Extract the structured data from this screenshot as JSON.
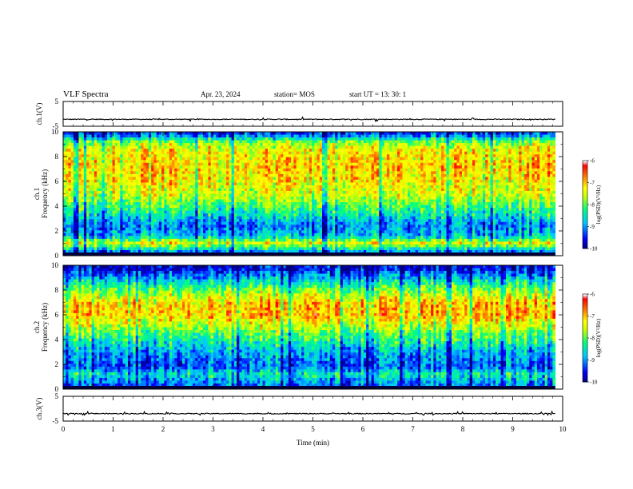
{
  "header": {
    "title": "VLF Spectra",
    "date": "Apr. 23, 2024",
    "station": "station= MOS",
    "start_ut": "start  UT  =   13: 30: 1"
  },
  "chart_data": [
    {
      "type": "line",
      "panel": "ch1-voltage",
      "ylabel": "ch.1(V)",
      "ylim": [
        -5,
        5
      ],
      "yticks": [
        "5",
        "-5"
      ],
      "x_range_min": [
        0,
        10
      ],
      "data_end_min": 9.85,
      "baseline_V": -2.2
    },
    {
      "type": "heatmap",
      "panel": "ch1-spectrogram",
      "ylabel_line1": "ch.1",
      "ylabel_line2": "Frequency (kHz)",
      "ylim": [
        0,
        10
      ],
      "yticks": [
        "0",
        "2",
        "4",
        "6",
        "8",
        "10"
      ],
      "x_range_min": [
        0,
        10
      ],
      "data_end_min": 9.85,
      "colorbar": {
        "label": "log(PSD)(V²/Hz)",
        "range": [
          -10,
          -6
        ],
        "ticks": [
          "-6",
          "-7",
          "-8",
          "-9",
          "-10"
        ]
      },
      "profile_khz_vs_logpsd": [
        [
          0.3,
          -9.0
        ],
        [
          1.0,
          -7.3
        ],
        [
          1.6,
          -8.7
        ],
        [
          2.5,
          -9.0
        ],
        [
          3.5,
          -8.3
        ],
        [
          5,
          -7.4
        ],
        [
          7,
          -7.0
        ],
        [
          8.5,
          -7.2
        ],
        [
          9.2,
          -7.8
        ],
        [
          9.8,
          -9.3
        ]
      ]
    },
    {
      "type": "heatmap",
      "panel": "ch2-spectrogram",
      "ylabel_line1": "ch.2",
      "ylabel_line2": "Frequency (kHz)",
      "ylim": [
        0,
        10
      ],
      "yticks": [
        "0",
        "2",
        "4",
        "6",
        "8",
        "10"
      ],
      "x_range_min": [
        0,
        10
      ],
      "data_end_min": 9.85,
      "colorbar": {
        "label": "log(PSD)(V²/Hz)",
        "range": [
          -10,
          -6
        ],
        "ticks": [
          "-6",
          "-7",
          "-8",
          "-9",
          "-10"
        ]
      },
      "profile_khz_vs_logpsd": [
        [
          0.3,
          -9.1
        ],
        [
          1.2,
          -8.4
        ],
        [
          1.8,
          -9.2
        ],
        [
          3.0,
          -8.8
        ],
        [
          4.5,
          -7.9
        ],
        [
          6.0,
          -6.9
        ],
        [
          7.0,
          -7.0
        ],
        [
          8.0,
          -7.8
        ],
        [
          9.0,
          -8.8
        ],
        [
          9.8,
          -9.6
        ]
      ]
    },
    {
      "type": "line",
      "panel": "ch3-voltage",
      "ylabel": "ch.3(V)",
      "ylim": [
        -5,
        5
      ],
      "yticks": [
        "5",
        "-5"
      ],
      "x_range_min": [
        0,
        10
      ],
      "data_end_min": 9.85,
      "baseline_V": -2.0
    }
  ],
  "xaxis": {
    "label": "Time (min)",
    "ticks": [
      "0",
      "1",
      "2",
      "3",
      "4",
      "5",
      "6",
      "7",
      "8",
      "9",
      "10"
    ]
  },
  "colors": {
    "colormap": [
      "#00007f",
      "#0000ff",
      "#00c8ff",
      "#00ff80",
      "#c8ff00",
      "#ffff00",
      "#ff8000",
      "#ff0000",
      "#ffffff"
    ],
    "trace": "#000000"
  }
}
